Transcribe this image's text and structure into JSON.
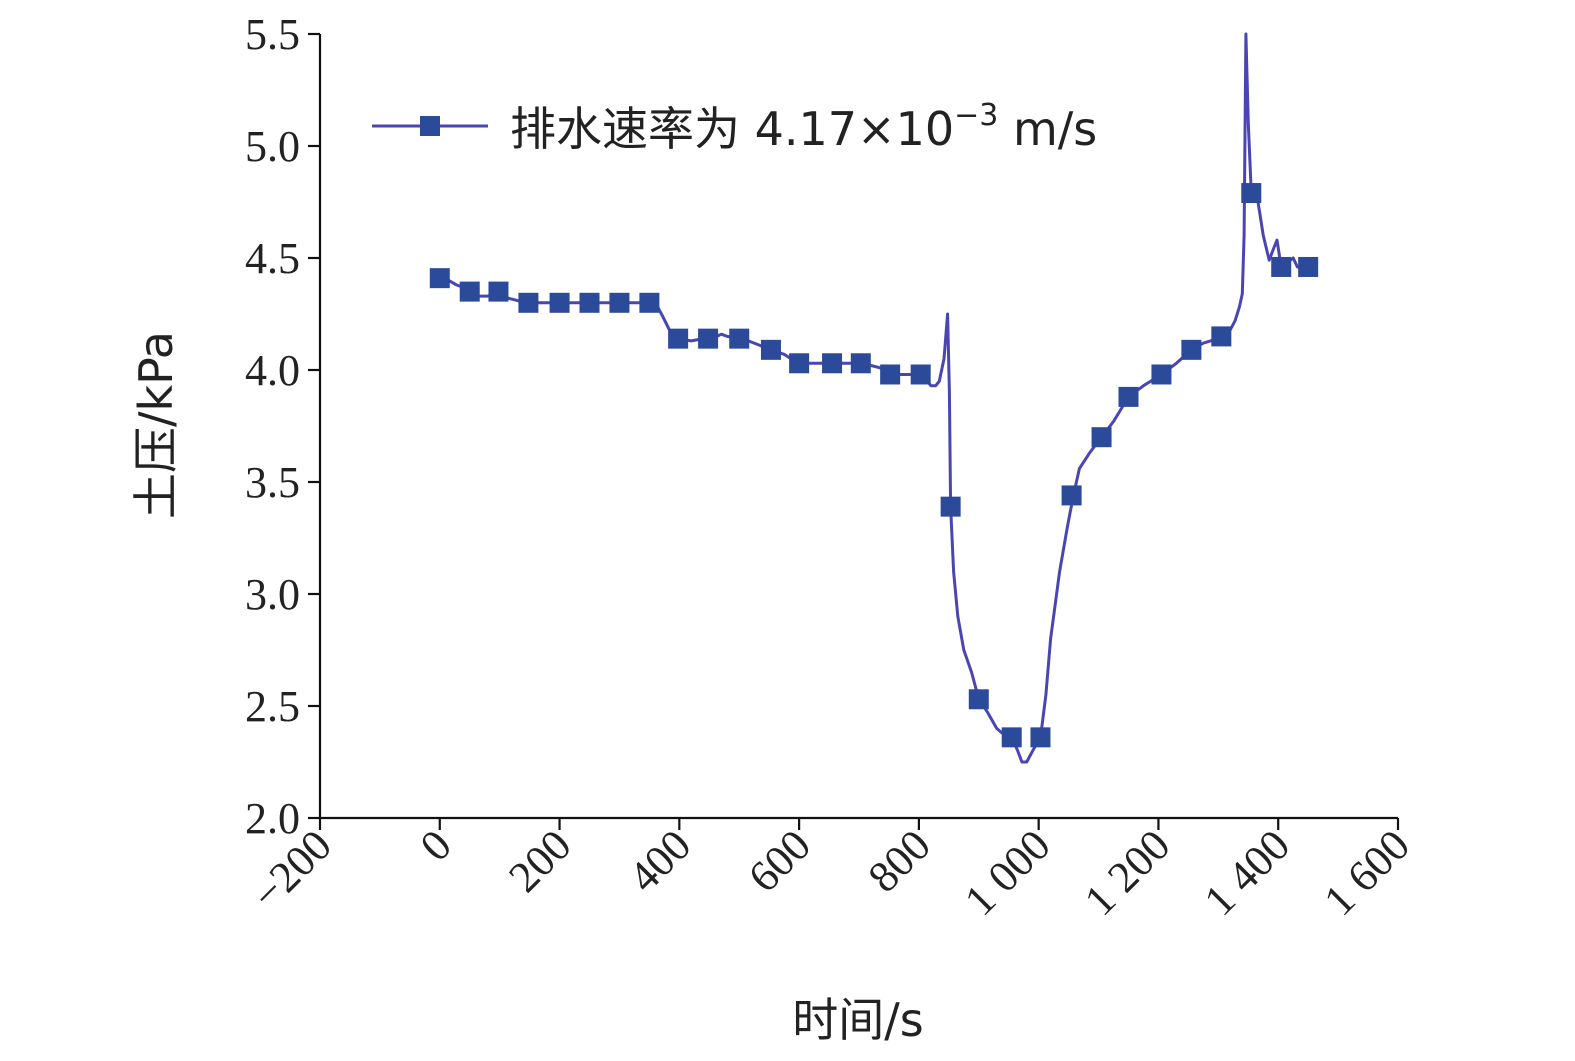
{
  "chart_data": {
    "type": "line",
    "title": "",
    "xlabel": "时间/s",
    "ylabel": "土压/kPa",
    "xlim": [
      -200,
      1600
    ],
    "ylim": [
      2.0,
      5.5
    ],
    "x_ticks": [
      -200,
      0,
      200,
      400,
      600,
      800,
      1000,
      1200,
      1400,
      1600
    ],
    "x_tick_labels": [
      "−200",
      "0",
      "200",
      "400",
      "600",
      "800",
      "1 000",
      "1 200",
      "1 400",
      "1 600"
    ],
    "y_ticks": [
      2.0,
      2.5,
      3.0,
      3.5,
      4.0,
      4.5,
      5.0,
      5.5
    ],
    "y_tick_labels": [
      "2.0",
      "2.5",
      "3.0",
      "3.5",
      "4.0",
      "4.5",
      "5.0",
      "5.5"
    ],
    "grid": false,
    "legend": {
      "position": "top-left",
      "label_main": "排水速率为 4.17×10",
      "label_sup": "−3",
      "label_unit": " m/s"
    },
    "series": [
      {
        "name": "排水速率为 4.17×10−3 m/s",
        "color": "#4b45b3",
        "marker_color": "#2c4a9a",
        "marker": "square",
        "points": [
          [
            0,
            4.41
          ],
          [
            15,
            4.4
          ],
          [
            28,
            4.38
          ],
          [
            38,
            4.37
          ],
          [
            45,
            4.38
          ],
          [
            52,
            4.35
          ],
          [
            65,
            4.33
          ],
          [
            80,
            4.33
          ],
          [
            98,
            4.35
          ],
          [
            115,
            4.32
          ],
          [
            130,
            4.31
          ],
          [
            148,
            4.3
          ],
          [
            200,
            4.3
          ],
          [
            250,
            4.3
          ],
          [
            300,
            4.3
          ],
          [
            350,
            4.3
          ],
          [
            362,
            4.29
          ],
          [
            372,
            4.24
          ],
          [
            385,
            4.17
          ],
          [
            398,
            4.14
          ],
          [
            420,
            4.13
          ],
          [
            440,
            4.14
          ],
          [
            455,
            4.14
          ],
          [
            470,
            4.16
          ],
          [
            480,
            4.15
          ],
          [
            505,
            4.14
          ],
          [
            525,
            4.12
          ],
          [
            553,
            4.09
          ],
          [
            575,
            4.07
          ],
          [
            598,
            4.03
          ],
          [
            655,
            4.03
          ],
          [
            700,
            4.03
          ],
          [
            720,
            4.02
          ],
          [
            735,
            4.01
          ],
          [
            752,
            3.98
          ],
          [
            790,
            3.98
          ],
          [
            808,
            3.97
          ],
          [
            820,
            3.93
          ],
          [
            828,
            3.93
          ],
          [
            834,
            3.95
          ],
          [
            842,
            4.05
          ],
          [
            848,
            4.25
          ],
          [
            851,
            3.9
          ],
          [
            853,
            3.39
          ],
          [
            858,
            3.1
          ],
          [
            865,
            2.9
          ],
          [
            875,
            2.75
          ],
          [
            888,
            2.65
          ],
          [
            900,
            2.53
          ],
          [
            915,
            2.47
          ],
          [
            930,
            2.4
          ],
          [
            943,
            2.37
          ],
          [
            955,
            2.36
          ],
          [
            965,
            2.3
          ],
          [
            972,
            2.25
          ],
          [
            980,
            2.25
          ],
          [
            990,
            2.3
          ],
          [
            1003,
            2.36
          ],
          [
            1012,
            2.55
          ],
          [
            1020,
            2.8
          ],
          [
            1035,
            3.1
          ],
          [
            1048,
            3.3
          ],
          [
            1058,
            3.44
          ],
          [
            1068,
            3.56
          ],
          [
            1085,
            3.63
          ],
          [
            1105,
            3.7
          ],
          [
            1125,
            3.77
          ],
          [
            1150,
            3.88
          ],
          [
            1175,
            3.93
          ],
          [
            1205,
            3.98
          ],
          [
            1230,
            4.03
          ],
          [
            1255,
            4.09
          ],
          [
            1275,
            4.12
          ],
          [
            1300,
            4.14
          ],
          [
            1318,
            4.17
          ],
          [
            1328,
            4.22
          ],
          [
            1335,
            4.28
          ],
          [
            1340,
            4.34
          ],
          [
            1343,
            4.6
          ],
          [
            1346,
            5.5
          ],
          [
            1350,
            5.1
          ],
          [
            1355,
            4.79
          ],
          [
            1365,
            4.77
          ],
          [
            1375,
            4.6
          ],
          [
            1385,
            4.49
          ],
          [
            1392,
            4.54
          ],
          [
            1398,
            4.58
          ],
          [
            1405,
            4.46
          ],
          [
            1425,
            4.5
          ],
          [
            1432,
            4.46
          ],
          [
            1450,
            4.46
          ]
        ],
        "markers": [
          [
            0,
            4.41
          ],
          [
            50,
            4.35
          ],
          [
            98,
            4.35
          ],
          [
            148,
            4.3
          ],
          [
            200,
            4.3
          ],
          [
            250,
            4.3
          ],
          [
            300,
            4.3
          ],
          [
            350,
            4.3
          ],
          [
            398,
            4.14
          ],
          [
            448,
            4.14
          ],
          [
            500,
            4.14
          ],
          [
            553,
            4.09
          ],
          [
            600,
            4.03
          ],
          [
            655,
            4.03
          ],
          [
            703,
            4.03
          ],
          [
            752,
            3.98
          ],
          [
            803,
            3.98
          ],
          [
            853,
            3.39
          ],
          [
            900,
            2.53
          ],
          [
            955,
            2.36
          ],
          [
            1003,
            2.36
          ],
          [
            1055,
            3.44
          ],
          [
            1105,
            3.7
          ],
          [
            1150,
            3.88
          ],
          [
            1205,
            3.98
          ],
          [
            1255,
            4.09
          ],
          [
            1305,
            4.15
          ],
          [
            1355,
            4.79
          ],
          [
            1405,
            4.46
          ],
          [
            1450,
            4.46
          ]
        ]
      }
    ]
  }
}
